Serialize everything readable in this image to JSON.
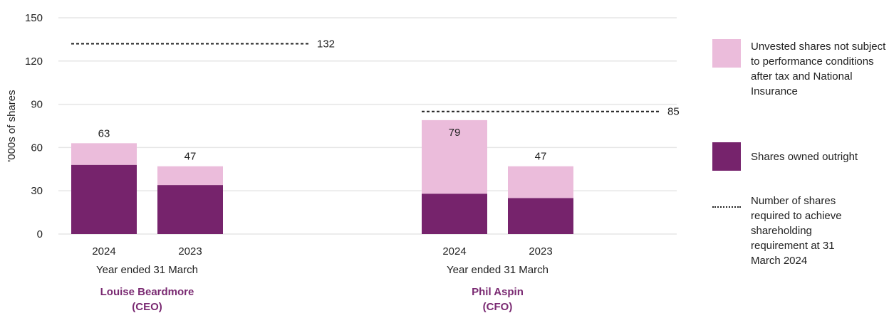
{
  "chart_data": {
    "type": "bar",
    "stacked": true,
    "ylabel": "'000s of shares",
    "ylim": [
      0,
      150
    ],
    "yticks": [
      0,
      30,
      60,
      90,
      120,
      150
    ],
    "grid": true,
    "colors": {
      "owned": "#76236c",
      "unvested": "#ebbcdb",
      "grid": "#e6e6e6",
      "group_label": "#7a2a72"
    },
    "groups": [
      {
        "name": "Louise Beardmore",
        "role": "(CEO)",
        "axis_label": "Year ended 31 March",
        "requirement": 132,
        "requirement_label": "132",
        "bars": [
          {
            "category": "2024",
            "owned": 48,
            "unvested": 15,
            "total_label": "63"
          },
          {
            "category": "2023",
            "owned": 34,
            "unvested": 13,
            "total_label": "47"
          }
        ]
      },
      {
        "name": "Phil Aspin",
        "role": "(CFO)",
        "axis_label": "Year ended 31 March",
        "requirement": 85,
        "requirement_label": "85",
        "bars": [
          {
            "category": "2024",
            "owned": 28,
            "unvested": 51,
            "total_label": "79"
          },
          {
            "category": "2023",
            "owned": 25,
            "unvested": 22,
            "total_label": "47"
          }
        ]
      }
    ],
    "legend": {
      "placement": "right",
      "items": [
        {
          "kind": "swatch",
          "color_key": "unvested",
          "label": "Unvested shares not subject to performance conditions after tax and National Insurance"
        },
        {
          "kind": "swatch",
          "color_key": "owned",
          "label": "Shares owned outright"
        },
        {
          "kind": "dash",
          "label": "Number of shares required to achieve shareholding requirement at 31 March 2024"
        }
      ]
    }
  }
}
